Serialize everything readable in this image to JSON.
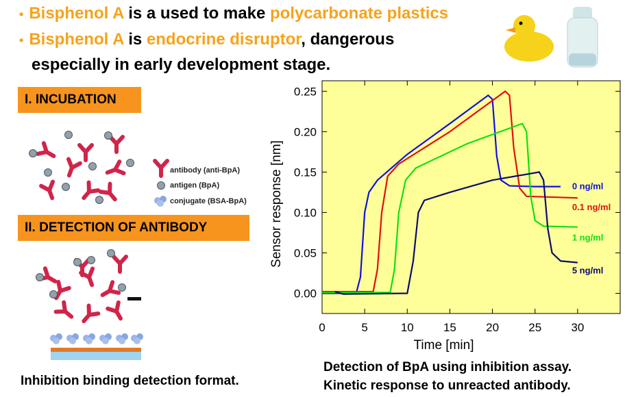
{
  "bullets": [
    {
      "parts": [
        "Bisphenol A",
        " is a used to make ",
        "polycarbonate plastics"
      ]
    },
    {
      "parts": [
        "Bisphenol A",
        " is ",
        "endocrine disruptor",
        ", dangerous especially in early development stage."
      ]
    }
  ],
  "steps": [
    "I.  INCUBATION",
    "II.  DETECTION OF  ANTIBODY"
  ],
  "legend_items": [
    "antibody (anti-BpA)",
    "antigen (BpA)",
    "conjugate (BSA-BpA)"
  ],
  "left_caption": "Inhibition binding detection format.",
  "chart_caption": [
    "Detection of BpA using inhibition assay.",
    "Kinetic response to unreacted antibody."
  ],
  "chart_data": {
    "type": "line",
    "xlabel": "Time [min]",
    "ylabel": "Sensor response [nm]",
    "xlim": [
      0,
      35
    ],
    "ylim": [
      -0.025,
      0.263
    ],
    "xticks": [
      0,
      5,
      10,
      15,
      20,
      25,
      30
    ],
    "yticks": [
      {
        "value": 0,
        "label": "0.00"
      },
      {
        "value": 0.05,
        "label": "0.05"
      },
      {
        "value": 0.1,
        "label": "0.10"
      },
      {
        "value": 0.15,
        "label": "0.15"
      },
      {
        "value": 0.2,
        "label": "0.20"
      },
      {
        "value": 0.25,
        "label": "0.25"
      }
    ],
    "background": "#ffff99",
    "series": [
      {
        "name": "0 ng/ml",
        "color": "#1010e0",
        "x": [
          0,
          4,
          4.5,
          5,
          5.5,
          6.5,
          10,
          15,
          19.5,
          20,
          20.5,
          21,
          22,
          25,
          28
        ],
        "values": [
          0,
          0,
          0.02,
          0.1,
          0.125,
          0.14,
          0.172,
          0.21,
          0.245,
          0.24,
          0.17,
          0.14,
          0.133,
          0.132,
          0.132
        ]
      },
      {
        "name": "0.1 ng/ml",
        "color": "#e01010",
        "x": [
          0,
          6,
          6.5,
          7,
          7.7,
          9,
          15,
          21.5,
          22,
          22.5,
          23.2,
          24,
          30
        ],
        "values": [
          0.002,
          0.002,
          0.03,
          0.1,
          0.145,
          0.16,
          0.2,
          0.25,
          0.245,
          0.18,
          0.13,
          0.12,
          0.118
        ]
      },
      {
        "name": "1 ng/ml",
        "color": "#10e010",
        "x": [
          0,
          8,
          8.5,
          9,
          9.8,
          11,
          17,
          23.5,
          24,
          24.5,
          25,
          26,
          30
        ],
        "values": [
          0.001,
          0.001,
          0.03,
          0.1,
          0.14,
          0.155,
          0.185,
          0.21,
          0.2,
          0.12,
          0.09,
          0.083,
          0.082
        ]
      },
      {
        "name": "5 ng/ml",
        "color": "#0a0a6e",
        "x": [
          1.5,
          2.5,
          10,
          10.7,
          11.3,
          12,
          15,
          20,
          25.5,
          26,
          26.5,
          27,
          28,
          30
        ],
        "values": [
          0.002,
          -0.001,
          0,
          0.04,
          0.1,
          0.115,
          0.125,
          0.14,
          0.15,
          0.14,
          0.08,
          0.05,
          0.04,
          0.038
        ]
      }
    ]
  }
}
